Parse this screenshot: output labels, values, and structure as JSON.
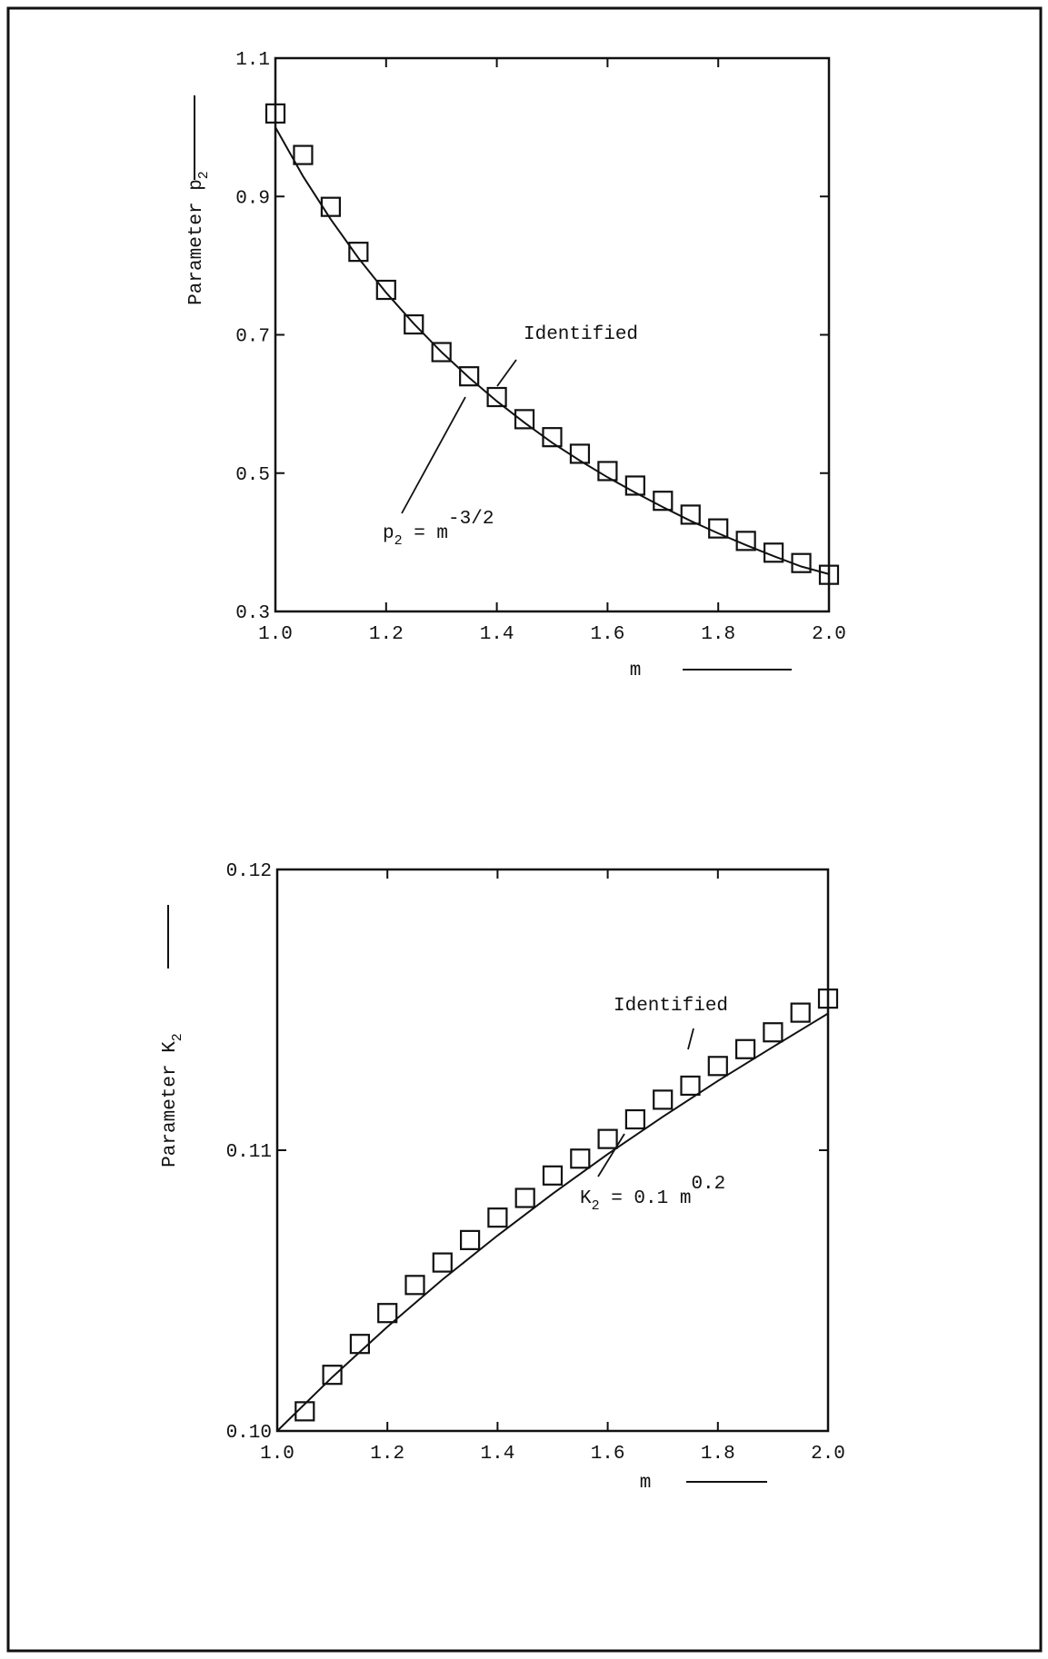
{
  "chart_data": [
    {
      "type": "scatter",
      "y_label": {
        "text": "Parameter p",
        "sub": "2"
      },
      "x_label": "m",
      "xlim": [
        1.0,
        2.0
      ],
      "xticks": [
        {
          "value": 1.0,
          "label": "1.0"
        },
        1.2,
        1.4,
        1.6,
        1.8,
        {
          "value": 2.0,
          "label": "2.0"
        }
      ],
      "ylim": [
        0.3,
        1.1
      ],
      "yticks": [
        0.3,
        0.5,
        0.7,
        0.9,
        1.1
      ],
      "series": [
        {
          "style": "square",
          "color": "#111111",
          "x": [
            1.0,
            1.05,
            1.1,
            1.15,
            1.2,
            1.25,
            1.3,
            1.35,
            1.4,
            1.45,
            1.5,
            1.55,
            1.6,
            1.65,
            1.7,
            1.75,
            1.8,
            1.85,
            1.9,
            1.95,
            2.0
          ],
          "values": [
            1.02,
            0.96,
            0.885,
            0.82,
            0.765,
            0.715,
            0.675,
            0.64,
            0.61,
            0.578,
            0.552,
            0.528,
            0.503,
            0.482,
            0.46,
            0.44,
            0.42,
            0.402,
            0.385,
            0.37,
            0.353
          ]
        },
        {
          "style": "line",
          "color": "#111111",
          "x": [
            1.0,
            1.05,
            1.1,
            1.15,
            1.2,
            1.25,
            1.3,
            1.35,
            1.4,
            1.45,
            1.5,
            1.55,
            1.6,
            1.65,
            1.7,
            1.75,
            1.8,
            1.85,
            1.9,
            1.95,
            2.0
          ],
          "values": [
            1.0,
            0.929,
            0.867,
            0.811,
            0.761,
            0.716,
            0.675,
            0.638,
            0.604,
            0.573,
            0.544,
            0.518,
            0.494,
            0.472,
            0.451,
            0.431,
            0.413,
            0.396,
            0.38,
            0.365,
            0.354
          ]
        }
      ],
      "annotations": [
        {
          "text": "Identified"
        },
        {
          "base": "p",
          "sub": "2",
          "rest": " = m",
          "sup": "-3/2"
        }
      ]
    },
    {
      "type": "scatter",
      "y_label": {
        "text": "Parameter K",
        "sub": "2"
      },
      "x_label": "m",
      "xlim": [
        1.0,
        2.0
      ],
      "xticks": [
        {
          "value": 1.0,
          "label": "1.0"
        },
        1.2,
        1.4,
        1.6,
        1.8,
        {
          "value": 2.0,
          "label": "2.0"
        }
      ],
      "ylim": [
        0.1,
        0.12
      ],
      "yticks": [
        {
          "value": 0.1,
          "label": "0.10"
        },
        0.11,
        0.12
      ],
      "series": [
        {
          "style": "square",
          "color": "#111111",
          "x": [
            1.05,
            1.1,
            1.15,
            1.2,
            1.25,
            1.3,
            1.35,
            1.4,
            1.45,
            1.5,
            1.55,
            1.6,
            1.65,
            1.7,
            1.75,
            1.8,
            1.85,
            1.9,
            1.95,
            2.0
          ],
          "values": [
            0.1007,
            0.102,
            0.1031,
            0.1042,
            0.1052,
            0.106,
            0.1068,
            0.1076,
            0.1083,
            0.1091,
            0.1097,
            0.1104,
            0.1111,
            0.1118,
            0.1123,
            0.113,
            0.1136,
            0.1142,
            0.1149,
            0.1154
          ]
        },
        {
          "style": "line",
          "color": "#111111",
          "x": [
            1.0,
            1.1,
            1.2,
            1.3,
            1.4,
            1.5,
            1.6,
            1.7,
            1.8,
            1.9,
            2.0
          ],
          "values": [
            0.1,
            0.10192,
            0.10371,
            0.10539,
            0.10696,
            0.10845,
            0.10986,
            0.11119,
            0.11247,
            0.11368,
            0.11487
          ]
        }
      ],
      "annotations": [
        {
          "text": "Identified"
        },
        {
          "base": "K",
          "sub": "2",
          "rest": " = 0.1 m",
          "sup": "0.2"
        }
      ]
    }
  ]
}
